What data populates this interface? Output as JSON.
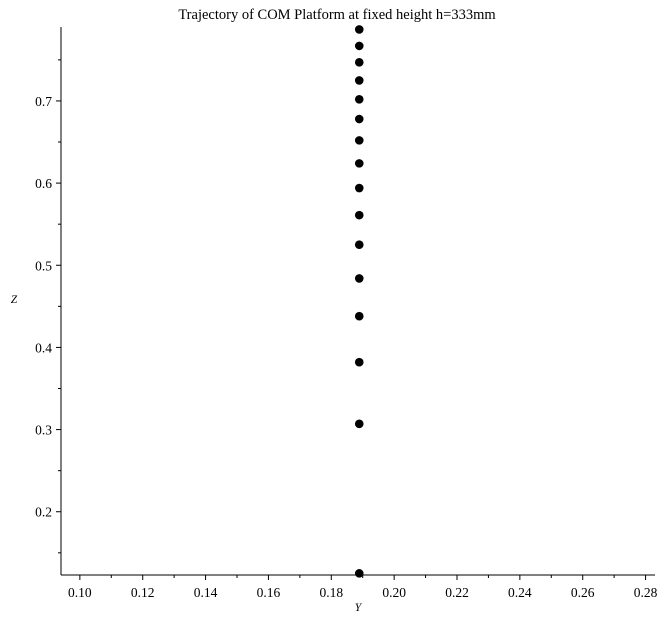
{
  "chart_data": {
    "type": "scatter",
    "title": "Trajectory of COM Platform at fixed height h=333mm",
    "xlabel": "Y",
    "ylabel": "Z",
    "xlim": [
      0.094,
      0.283
    ],
    "ylim": [
      0.123,
      0.79
    ],
    "x_ticks": [
      0.1,
      0.12,
      0.14,
      0.16,
      0.18,
      0.2,
      0.22,
      0.24,
      0.26,
      0.28
    ],
    "x_tick_labels": [
      "0.10",
      "0.12",
      "0.14",
      "0.16",
      "0.18",
      "0.20",
      "0.22",
      "0.24",
      "0.26",
      "0.28"
    ],
    "y_ticks": [
      0.2,
      0.3,
      0.4,
      0.5,
      0.6,
      0.7
    ],
    "y_tick_labels": [
      "0.2",
      "0.3",
      "0.4",
      "0.5",
      "0.6",
      "0.7"
    ],
    "grid": false,
    "marker_color": "#000000",
    "points": [
      {
        "x": 0.1889,
        "y": 0.125
      },
      {
        "x": 0.1889,
        "y": 0.307
      },
      {
        "x": 0.1889,
        "y": 0.382
      },
      {
        "x": 0.1889,
        "y": 0.438
      },
      {
        "x": 0.1889,
        "y": 0.484
      },
      {
        "x": 0.1889,
        "y": 0.525
      },
      {
        "x": 0.1889,
        "y": 0.561
      },
      {
        "x": 0.1889,
        "y": 0.594
      },
      {
        "x": 0.1889,
        "y": 0.624
      },
      {
        "x": 0.1889,
        "y": 0.652
      },
      {
        "x": 0.1889,
        "y": 0.678
      },
      {
        "x": 0.1889,
        "y": 0.702
      },
      {
        "x": 0.1889,
        "y": 0.725
      },
      {
        "x": 0.1889,
        "y": 0.747
      },
      {
        "x": 0.1889,
        "y": 0.767
      },
      {
        "x": 0.1889,
        "y": 0.787
      }
    ]
  }
}
